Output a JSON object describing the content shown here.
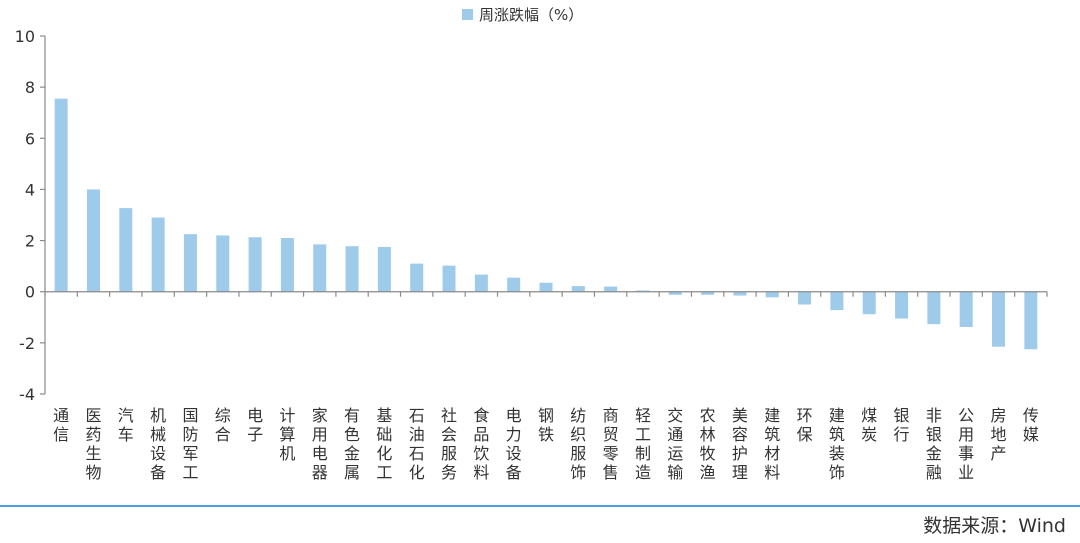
{
  "legend": {
    "label": "周涨跌幅（%）"
  },
  "source": "数据来源：Wind",
  "colors": {
    "bar": "#9fcbea",
    "axis": "#8a8a8a",
    "text": "#333333",
    "rule": "#4aa3df"
  },
  "chart_data": {
    "type": "bar",
    "title": "",
    "xlabel": "",
    "ylabel": "",
    "ylim": [
      -4,
      10
    ],
    "yticks": [
      10,
      8,
      6,
      4,
      2,
      0,
      -2,
      -4
    ],
    "legend_position": "top-center",
    "grid": false,
    "categories": [
      "通信",
      "医药生物",
      "汽车",
      "机械设备",
      "国防军工",
      "综合",
      "电子",
      "计算机",
      "家用电器",
      "有色金属",
      "基础化工",
      "石油石化",
      "社会服务",
      "食品饮料",
      "电力设备",
      "钢铁",
      "纺织服饰",
      "商贸零售",
      "轻工制造",
      "交通运输",
      "农林牧渔",
      "美容护理",
      "建筑材料",
      "环保",
      "建筑装饰",
      "煤炭",
      "银行",
      "非银金融",
      "公用事业",
      "房地产",
      "传媒"
    ],
    "series": [
      {
        "name": "周涨跌幅（%）",
        "values": [
          7.55,
          4.0,
          3.27,
          2.9,
          2.25,
          2.2,
          2.13,
          2.1,
          1.85,
          1.78,
          1.75,
          1.1,
          1.02,
          0.67,
          0.55,
          0.35,
          0.22,
          0.2,
          0.05,
          -0.12,
          -0.12,
          -0.15,
          -0.22,
          -0.5,
          -0.72,
          -0.88,
          -1.05,
          -1.27,
          -1.38,
          -2.15,
          -2.25
        ]
      }
    ]
  }
}
